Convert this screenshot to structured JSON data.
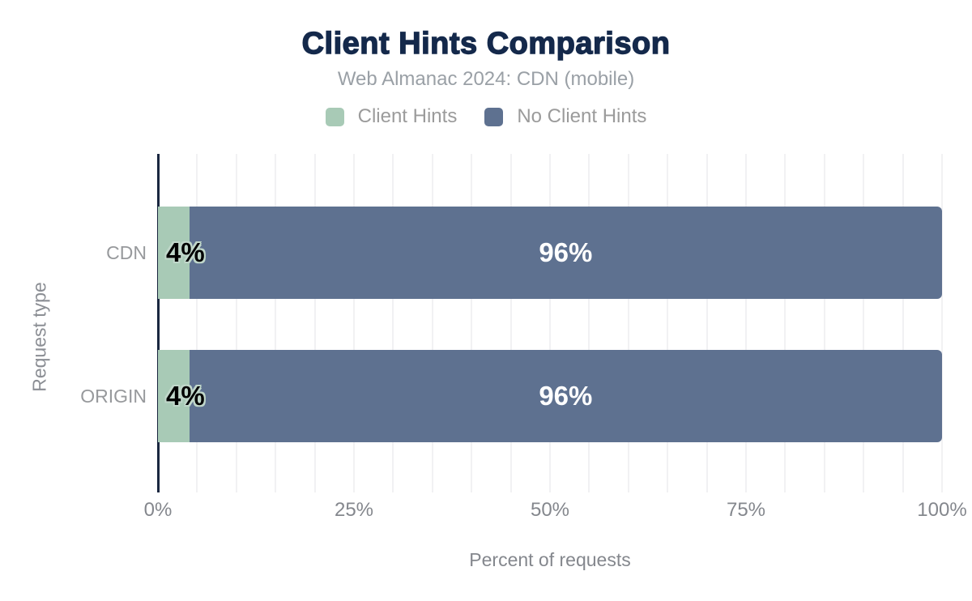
{
  "header": {
    "title": "Client Hints Comparison",
    "subtitle": "Web Almanac 2024: CDN (mobile)"
  },
  "legend": {
    "items": [
      {
        "label": "Client Hints",
        "color": "#a8cab6"
      },
      {
        "label": "No Client Hints",
        "color": "#5e7190"
      }
    ]
  },
  "axes": {
    "x_title": "Percent of requests",
    "y_title": "Request type",
    "x_ticks": [
      {
        "label": "0%",
        "value": 0
      },
      {
        "label": "25%",
        "value": 25
      },
      {
        "label": "50%",
        "value": 50
      },
      {
        "label": "75%",
        "value": 75
      },
      {
        "label": "100%",
        "value": 100
      }
    ]
  },
  "chart_data": {
    "type": "bar",
    "orientation": "horizontal",
    "stacked": true,
    "title": "Client Hints Comparison",
    "subtitle": "Web Almanac 2024: CDN (mobile)",
    "categories": [
      "CDN",
      "ORIGIN"
    ],
    "series": [
      {
        "name": "Client Hints",
        "color": "#a8cab6",
        "values": [
          4,
          4
        ],
        "data_labels": [
          "4%",
          "4%"
        ]
      },
      {
        "name": "No Client Hints",
        "color": "#5e7190",
        "values": [
          96,
          96
        ],
        "data_labels": [
          "96%",
          "96%"
        ]
      }
    ],
    "xlabel": "Percent of requests",
    "ylabel": "Request type",
    "xlim": [
      0,
      100
    ],
    "x_tick_labels": [
      "0%",
      "25%",
      "50%",
      "75%",
      "100%"
    ],
    "minor_grid_step_pct": 5,
    "grid": true,
    "legend_position": "top"
  },
  "colors": {
    "title_text": "#14294b",
    "subtitle_text": "#9aa0a6",
    "axis_text": "#84878d",
    "category_text": "#97999c",
    "axis_line": "#1a2740",
    "gridline": "#f1f1f3",
    "label_on_dark": "#ffffff",
    "label_on_light": "#000000",
    "label_halo": "#c0d7ca",
    "background": "#ffffff"
  }
}
